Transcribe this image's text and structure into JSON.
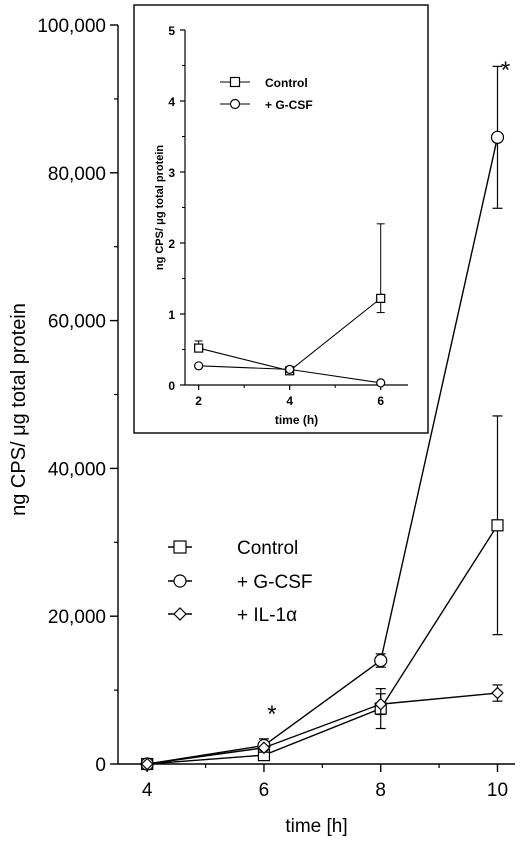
{
  "chart_data": [
    {
      "type": "line",
      "title": "",
      "xlabel": "time [h]",
      "ylabel": "ng CPS/ μg total protein",
      "xlim": [
        3.5,
        10.3
      ],
      "ylim": [
        0,
        100000
      ],
      "xticks": [
        4,
        6,
        8,
        10
      ],
      "xtick_labels": [
        "4",
        "6",
        "8",
        "10"
      ],
      "yticks": [
        0,
        20000,
        40000,
        60000,
        80000,
        100000
      ],
      "ytick_labels": [
        "0",
        "20,000",
        "40,000",
        "60,000",
        "80,000",
        "100,000"
      ],
      "legend_position": "lower-middle",
      "annotations": [
        "*",
        "*"
      ],
      "annotation_x": [
        6,
        10
      ],
      "series": [
        {
          "name": "Control",
          "marker": "square",
          "x": [
            4,
            6,
            8,
            10
          ],
          "y": [
            0,
            1200,
            7500,
            32300
          ],
          "err": [
            0,
            0,
            2700,
            14800
          ]
        },
        {
          "name": "+ G-CSF",
          "marker": "circle",
          "x": [
            4,
            6,
            8,
            10
          ],
          "y": [
            0,
            2500,
            14000,
            84800
          ],
          "err": [
            0,
            900,
            900,
            9600
          ]
        },
        {
          "name": "+ IL-1α",
          "marker": "diamond",
          "x": [
            4,
            6,
            8,
            10
          ],
          "y": [
            0,
            2200,
            8100,
            9600
          ],
          "err": [
            0,
            0,
            1400,
            1100
          ]
        }
      ]
    },
    {
      "type": "line",
      "title": "",
      "xlabel": "time (h)",
      "ylabel": "ng CPS/ μg total protein",
      "xlim": [
        1.7,
        6.6
      ],
      "ylim": [
        0,
        5
      ],
      "xticks": [
        2,
        4,
        6
      ],
      "xtick_labels": [
        "2",
        "4",
        "6"
      ],
      "yticks": [
        0,
        1,
        2,
        3,
        4,
        5
      ],
      "ytick_labels": [
        "0",
        "1",
        "2",
        "3",
        "4",
        "5"
      ],
      "legend_position": "top-left",
      "series": [
        {
          "name": "Control",
          "marker": "square",
          "x": [
            2,
            4,
            6
          ],
          "y": [
            0.52,
            0.2,
            1.22
          ],
          "err": [
            0.1,
            0.05,
            1.05
          ],
          "err_dir": [
            "up",
            "up",
            "both"
          ]
        },
        {
          "name": "+ G-CSF",
          "marker": "circle",
          "x": [
            2,
            4,
            6
          ],
          "y": [
            0.27,
            0.22,
            0.03
          ],
          "err": [
            0,
            0,
            0
          ],
          "err_dir": [
            "up",
            "up",
            "up"
          ]
        }
      ]
    }
  ]
}
